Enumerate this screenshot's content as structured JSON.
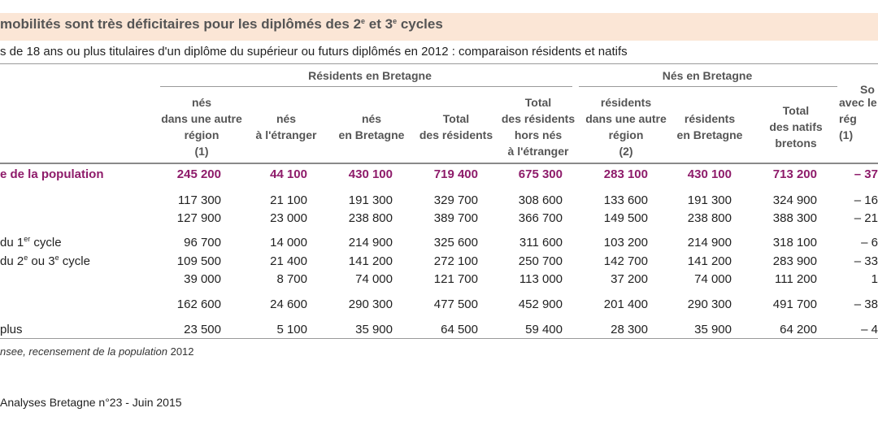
{
  "title": {
    "before": "mobilités sont très déficitaires pour les diplômés des 2",
    "sup1": "e",
    "middle": " et 3",
    "sup2": "e",
    "after": " cycles"
  },
  "subtitle": "s de 18 ans ou plus titulaires d'un diplôme du supérieur ou futurs diplômés en 2012 : comparaison résidents et natifs",
  "groups": {
    "residents": "Résidents en Bretagne",
    "natifs": "Nés en Bretagne",
    "solde": "So"
  },
  "columns": [
    {
      "lines": [
        "nés",
        "dans une autre",
        "région",
        "(1)"
      ]
    },
    {
      "lines": [
        "nés",
        "à l'étranger"
      ]
    },
    {
      "lines": [
        "nés",
        "en Bretagne"
      ]
    },
    {
      "lines": [
        "Total",
        "des résidents"
      ]
    },
    {
      "lines": [
        "Total",
        "des résidents",
        "hors nés",
        "à l'étranger"
      ]
    },
    {
      "lines": [
        "résidents",
        "dans une autre",
        "région",
        "(2)"
      ]
    },
    {
      "lines": [
        "résidents",
        "en Bretagne"
      ]
    },
    {
      "lines": [
        "Total",
        "des natifs",
        "bretons"
      ]
    },
    {
      "lines": [
        "avec le",
        "rég",
        "(1)"
      ]
    }
  ],
  "rows": [
    {
      "label": "e de la population",
      "highlight": true,
      "values": [
        "245 200",
        "44 100",
        "430 100",
        "719 400",
        "675 300",
        "283 100",
        "430 100",
        "713 200",
        "– 37"
      ]
    },
    {
      "label": "",
      "values": [
        "117 300",
        "21 100",
        "191 300",
        "329 700",
        "308 600",
        "133 600",
        "191 300",
        "324 900",
        "– 16"
      ]
    },
    {
      "label": "",
      "values": [
        "127 900",
        "23 000",
        "238 800",
        "389 700",
        "366 700",
        "149 500",
        "238 800",
        "388 300",
        "– 21"
      ]
    },
    {
      "label": "du 1",
      "label_sup": "er",
      "label_after": " cycle",
      "values": [
        "96 700",
        "14 000",
        "214 900",
        "325 600",
        "311 600",
        "103 200",
        "214 900",
        "318 100",
        "– 6"
      ]
    },
    {
      "label": "du 2",
      "label_sup": "e",
      "label_after": " ou 3",
      "label_sup2": "e",
      "label_after2": " cycle",
      "values": [
        "109 500",
        "21 400",
        "141 200",
        "272 100",
        "250 700",
        "142 700",
        "141 200",
        "283 900",
        "– 33"
      ]
    },
    {
      "label": "",
      "values": [
        "39 000",
        "8 700",
        "74 000",
        "121 700",
        "113 000",
        "37 200",
        "74 000",
        "111 200",
        "1"
      ]
    },
    {
      "label": "",
      "values": [
        "162 600",
        "24 600",
        "290 300",
        "477 500",
        "452 900",
        "201 400",
        "290 300",
        "491 700",
        "– 38"
      ]
    },
    {
      "label": "plus",
      "values": [
        "23 500",
        "5 100",
        "35 900",
        "64 500",
        "59 400",
        "28 300",
        "35 900",
        "64 200",
        "– 4"
      ]
    }
  ],
  "source": {
    "italic": "nsee, recensement de la population",
    "year": " 2012"
  },
  "footer": "Analyses Bretagne n°23 - Juin 2015",
  "colors": {
    "title_band": "#fbe6d6",
    "highlight": "#8e1b6a",
    "header_text": "#555555"
  }
}
